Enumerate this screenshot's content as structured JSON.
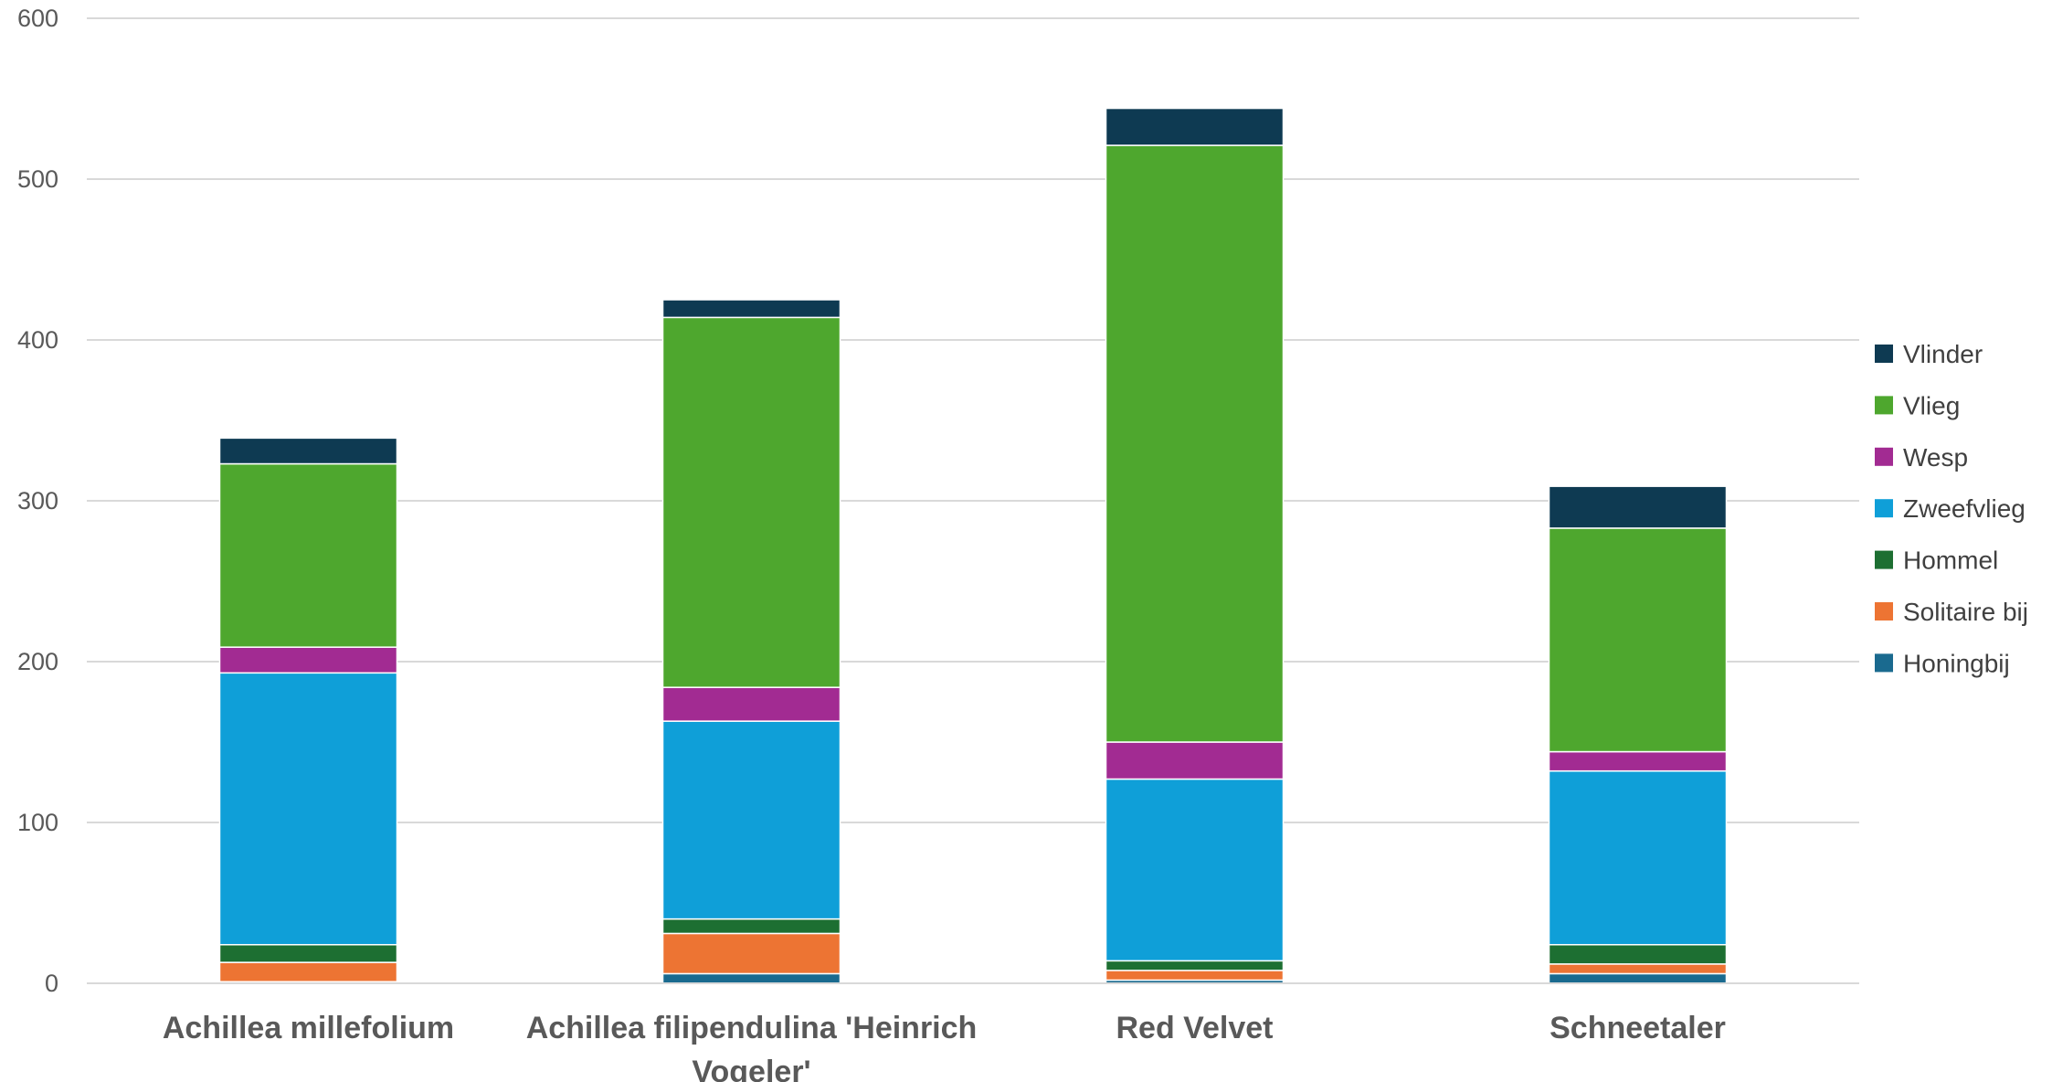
{
  "chart_data": {
    "type": "bar",
    "stacked": true,
    "categories": [
      [
        "Achillea millefolium"
      ],
      [
        "Achillea filipendulina 'Heinrich",
        "Vogeler'"
      ],
      [
        "Red Velvet"
      ],
      [
        "Schneetaler"
      ]
    ],
    "series": [
      {
        "name": "Honingbij",
        "color": "#1a6a8f",
        "values": [
          1,
          6,
          2,
          6
        ]
      },
      {
        "name": "Solitaire bij",
        "color": "#ed7433",
        "values": [
          12,
          25,
          6,
          6
        ]
      },
      {
        "name": "Hommel",
        "color": "#1d6f32",
        "values": [
          11,
          9,
          6,
          12
        ]
      },
      {
        "name": "Zweefvlieg",
        "color": "#0f9fd8",
        "values": [
          169,
          123,
          113,
          108
        ]
      },
      {
        "name": "Wesp",
        "color": "#a22b92",
        "values": [
          16,
          21,
          23,
          12
        ]
      },
      {
        "name": "Vlieg",
        "color": "#4ea72e",
        "values": [
          114,
          230,
          371,
          139
        ]
      },
      {
        "name": "Vlinder",
        "color": "#0e3a52",
        "values": [
          16,
          11,
          23,
          26
        ]
      }
    ],
    "title": "",
    "xlabel": "",
    "ylabel": "",
    "ylim": [
      0,
      600
    ],
    "yticks": [
      "0",
      "100",
      "200",
      "300",
      "400",
      "500",
      "600"
    ],
    "grid": true,
    "legend": "right"
  }
}
